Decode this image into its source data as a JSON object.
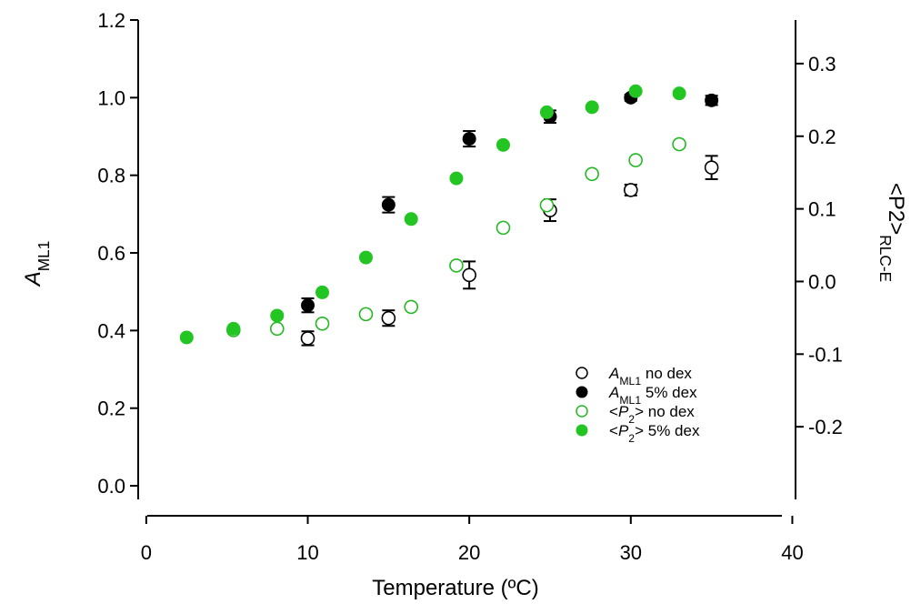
{
  "chart_data": {
    "type": "scatter",
    "xlabel": "Temperature (ºC)",
    "ylabel_left": {
      "main": "A",
      "sub": "ML1"
    },
    "ylabel_right": {
      "main": "<P2>",
      "sub": "RLC-E"
    },
    "xlim": [
      -0.5,
      40.2
    ],
    "ylim_left": [
      -0.035,
      1.2
    ],
    "ylim_right": [
      -0.3,
      0.36
    ],
    "x_ticks": [
      0,
      10,
      20,
      30,
      40
    ],
    "x_tick_labels": [
      "0",
      "10",
      "20",
      "30",
      "40"
    ],
    "y_left_ticks": [
      0.0,
      0.2,
      0.4,
      0.6,
      0.8,
      1.0,
      1.2
    ],
    "y_left_tick_labels": [
      "0.0",
      "0.2",
      "0.4",
      "0.6",
      "0.8",
      "1.0",
      "1.2"
    ],
    "y_right_ticks": [
      -0.2,
      -0.1,
      0.0,
      0.1,
      0.2,
      0.3
    ],
    "y_right_tick_labels": [
      "-0.2",
      "-0.1",
      "0.0",
      "0.1",
      "0.2",
      "0.3"
    ],
    "grid": false,
    "legend_position": "lower-right",
    "series": [
      {
        "name": "A_ML1 no dex",
        "legend": {
          "main": "A",
          "sub": "ML1",
          "rest": " no dex"
        },
        "axis": "left",
        "marker": "open",
        "color": "#000000",
        "x": [
          10,
          15,
          20,
          25,
          30,
          35
        ],
        "y": [
          0.38,
          0.432,
          0.543,
          0.71,
          0.762,
          0.82
        ],
        "err": [
          0.018,
          0.02,
          0.035,
          0.028,
          0.014,
          0.03
        ]
      },
      {
        "name": "A_ML1 5% dex",
        "legend": {
          "main": "A",
          "sub": "ML1",
          "rest": " 5% dex"
        },
        "axis": "left",
        "marker": "filled",
        "color": "#000000",
        "x": [
          10,
          15,
          20,
          25,
          30,
          35
        ],
        "y": [
          0.465,
          0.724,
          0.894,
          0.951,
          1.0,
          0.993
        ],
        "err": [
          0.018,
          0.02,
          0.02,
          0.016,
          0.008,
          0.012
        ]
      },
      {
        "name": "<P2> no dex",
        "legend": {
          "main": "<P",
          "sub2": "2",
          "rest": "> no dex"
        },
        "axis": "right",
        "marker": "open",
        "color": "#22b822",
        "x": [
          5.4,
          8.1,
          10.9,
          13.6,
          16.4,
          19.2,
          22.1,
          24.8,
          27.6,
          30.3,
          33.0
        ],
        "y": [
          -0.067,
          -0.065,
          -0.058,
          -0.045,
          -0.035,
          0.022,
          0.074,
          0.105,
          0.148,
          0.167,
          0.189
        ]
      },
      {
        "name": "<P2> 5% dex",
        "legend": {
          "main": "<P",
          "sub2": "2",
          "rest": "> 5% dex"
        },
        "axis": "right",
        "marker": "filled",
        "color": "#22c522",
        "x": [
          2.5,
          5.4,
          8.1,
          10.9,
          13.6,
          16.4,
          19.2,
          22.1,
          24.8,
          27.6,
          30.3,
          33.0
        ],
        "y": [
          -0.077,
          -0.065,
          -0.047,
          -0.015,
          0.033,
          0.086,
          0.142,
          0.188,
          0.233,
          0.24,
          0.262,
          0.259
        ]
      }
    ]
  }
}
